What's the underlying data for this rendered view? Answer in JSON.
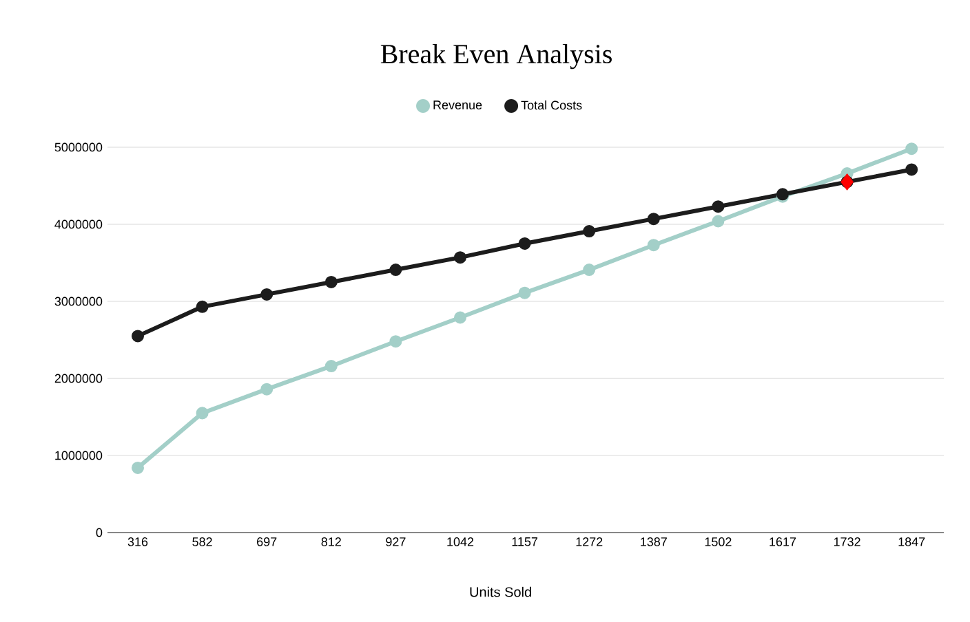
{
  "chart_data": {
    "type": "line",
    "title": "Break Even Analysis",
    "xlabel": "Units Sold",
    "categories": [
      "316",
      "582",
      "697",
      "812",
      "927",
      "1042",
      "1157",
      "1272",
      "1387",
      "1502",
      "1617",
      "1732",
      "1847"
    ],
    "series": [
      {
        "name": "Revenue",
        "color": "#a3cfc8",
        "values": [
          840000,
          1550000,
          1860000,
          2160000,
          2480000,
          2790000,
          3110000,
          3410000,
          3730000,
          4040000,
          4360000,
          4660000,
          4980000
        ]
      },
      {
        "name": "Total Costs",
        "color": "#1c1c1c",
        "values": [
          2550000,
          2930000,
          3090000,
          3250000,
          3410000,
          3570000,
          3750000,
          3910000,
          4070000,
          4230000,
          4390000,
          4550000,
          4710000
        ]
      },
      {
        "type": "scatter",
        "marker": "diamond",
        "color": "#ff0000",
        "values": [
          null,
          null,
          null,
          null,
          null,
          null,
          null,
          null,
          null,
          null,
          null,
          4550000,
          null
        ]
      }
    ],
    "ylim": [
      0,
      5000000
    ],
    "yticks": [
      0,
      1000000,
      2000000,
      3000000,
      4000000,
      5000000
    ],
    "grid": "y",
    "legend": "top",
    "marker": "circle",
    "line_style": "solid"
  }
}
